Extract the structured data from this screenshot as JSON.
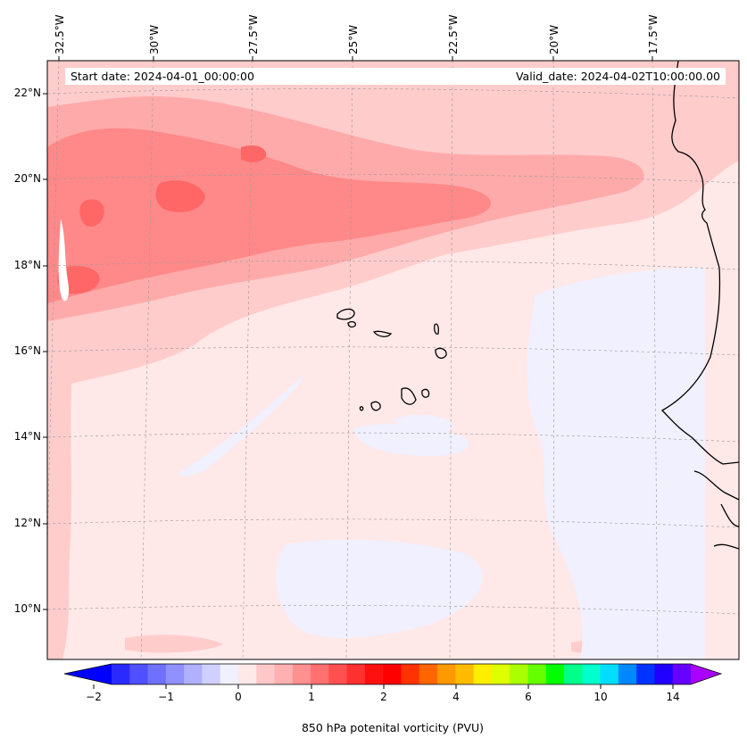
{
  "header": {
    "start_label": "Start date: 2024-04-01_00:00:00",
    "valid_label": "Valid_date: 2024-04-02T10:00:00.00"
  },
  "axes": {
    "lon_labels": [
      "32.5°W",
      "30°W",
      "27.5°W",
      "25°W",
      "22.5°W",
      "20°W",
      "17.5°W"
    ],
    "lat_labels": [
      "22°N",
      "20°N",
      "18°N",
      "16°N",
      "14°N",
      "12°N",
      "10°N"
    ]
  },
  "colorbar": {
    "label": "850 hPa potenital vorticity (PVU)",
    "tick_labels": [
      "−2",
      "−1",
      "0",
      "1",
      "2",
      "4",
      "6",
      "10",
      "14"
    ],
    "colors": [
      "#0000ff",
      "#2a2aff",
      "#5050ff",
      "#7070ff",
      "#9090ff",
      "#b0b0ff",
      "#d0d0ff",
      "#f0f0ff",
      "#ffe8e8",
      "#ffc8c8",
      "#ffb0b0",
      "#ff9090",
      "#ff7070",
      "#ff5050",
      "#ff3030",
      "#ff1010",
      "#ff0000",
      "#ff3300",
      "#ff6600",
      "#ff9900",
      "#ffbb00",
      "#ffee00",
      "#ddff00",
      "#aaff00",
      "#66ff00",
      "#00ff00",
      "#00ff88",
      "#00ffcc",
      "#00ddff",
      "#0088ff",
      "#0033ff",
      "#2200ff",
      "#6600ff",
      "#aa00ff"
    ]
  },
  "map_colors": {
    "background": "#ffe8e8",
    "light": "#ffcccc",
    "medium": "#ffaaaa",
    "strong": "#ff8888",
    "intense": "#ff6666",
    "negative": "#f0f0ff",
    "highlight": "#ffffff",
    "coast": "#000000"
  }
}
